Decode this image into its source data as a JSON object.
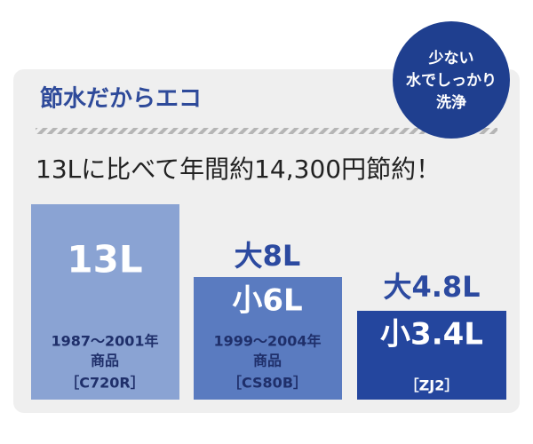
{
  "header": {
    "title": "節水だからエコ",
    "badge": [
      "少ない",
      "水でしっかり",
      "洗浄"
    ],
    "subtitle": "13Lに比べて年間約14,300円節約！"
  },
  "columns": [
    {
      "above": null,
      "inside": "13L",
      "caption": [
        "1987〜2001年",
        "商品",
        "［C720R］"
      ]
    },
    {
      "above": "大8L",
      "inside": "小6L",
      "caption": [
        "1999〜2004年",
        "商品",
        "［CS80B］"
      ]
    },
    {
      "above": "大4.8L",
      "inside": "小3.4L",
      "caption": [
        "［ZJ2］"
      ]
    }
  ]
}
